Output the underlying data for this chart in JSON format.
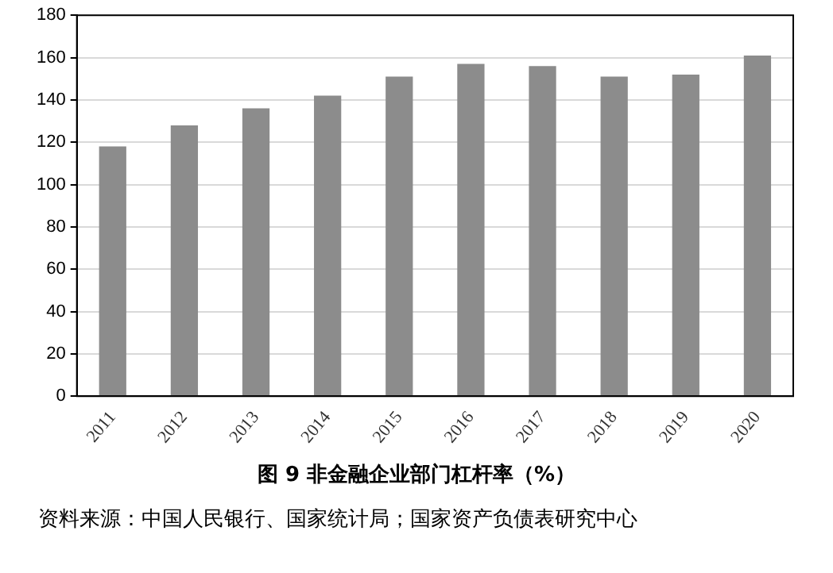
{
  "chart_data": {
    "type": "bar",
    "title": "图 9 非金融企业部门杠杆率（%）",
    "categories": [
      "2011",
      "2012",
      "2013",
      "2014",
      "2015",
      "2016",
      "2017",
      "2018",
      "2019",
      "2020"
    ],
    "values": [
      118,
      128,
      136,
      142,
      151,
      157,
      156,
      151,
      152,
      161
    ],
    "color": "#8c8c8c",
    "ylim": [
      0,
      180
    ],
    "yticks": [
      0,
      20,
      40,
      60,
      80,
      100,
      120,
      140,
      160,
      180
    ],
    "grid": "y",
    "annotations": [
      "资料来源：中国人民银行、国家统计局；国家资产负债表研究中心"
    ]
  }
}
